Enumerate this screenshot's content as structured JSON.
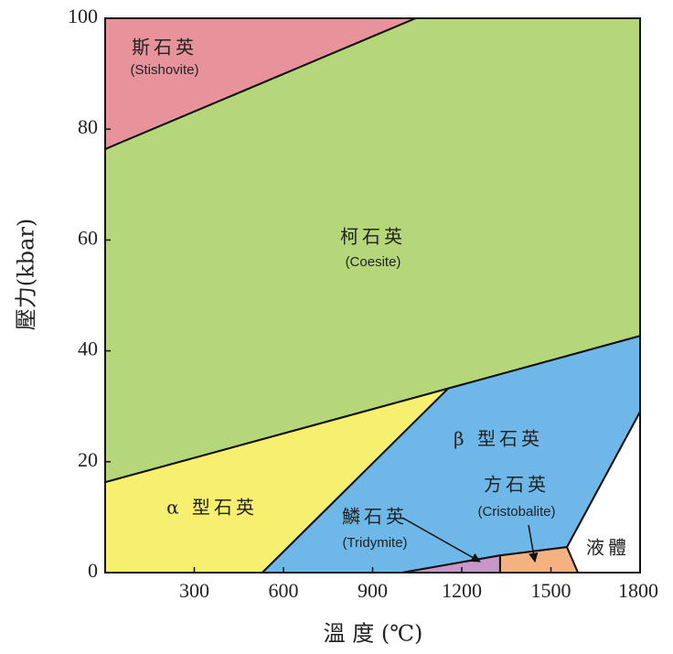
{
  "chart_data": {
    "type": "phase-diagram",
    "xlabel": "溫 度 (℃)",
    "ylabel": "壓力(kbar)",
    "xlim": [
      0,
      1800
    ],
    "ylim": [
      0,
      100
    ],
    "xticks": [
      300,
      600,
      900,
      1200,
      1500,
      1800
    ],
    "yticks": [
      0,
      20,
      40,
      60,
      80,
      100
    ],
    "regions": [
      {
        "name": "斯石英",
        "name_en": "(Stishovite)",
        "color": "#e8939b",
        "x": [
          0,
          1045,
          0
        ],
        "y": [
          100,
          100,
          76.4
        ]
      },
      {
        "name": "柯石英",
        "name_en": "(Coesite)",
        "color": "#b5d77a",
        "x": [
          0,
          1045,
          1800,
          1800,
          0
        ],
        "y": [
          76.4,
          100,
          100,
          42.7,
          16.3
        ]
      },
      {
        "name": "α 型石英",
        "color": "#f7ef6f",
        "x": [
          0,
          1154,
          529,
          0
        ],
        "y": [
          16.3,
          33.2,
          0,
          0
        ]
      },
      {
        "name": "β 型石英",
        "color": "#6db8e8",
        "x": [
          1154,
          1800,
          1800,
          1554,
          1329,
          1000,
          529
        ],
        "y": [
          33.2,
          42.7,
          29,
          4.6,
          3.1,
          0,
          0
        ]
      },
      {
        "name": "鱗石英",
        "name_en": "(Tridymite)",
        "color": "#c896c8",
        "x": [
          1000,
          1329,
          1329
        ],
        "y": [
          0,
          3.1,
          0
        ]
      },
      {
        "name": "方石英",
        "name_en": "(Cristobalite)",
        "color": "#f3b27f",
        "x": [
          1329,
          1554,
          1591,
          1329
        ],
        "y": [
          3.1,
          4.6,
          0,
          0
        ]
      },
      {
        "name": "液體",
        "color": "#ffffff",
        "x": [
          1800,
          1554,
          1591,
          1800
        ],
        "y": [
          29,
          4.6,
          0,
          0
        ]
      }
    ]
  }
}
